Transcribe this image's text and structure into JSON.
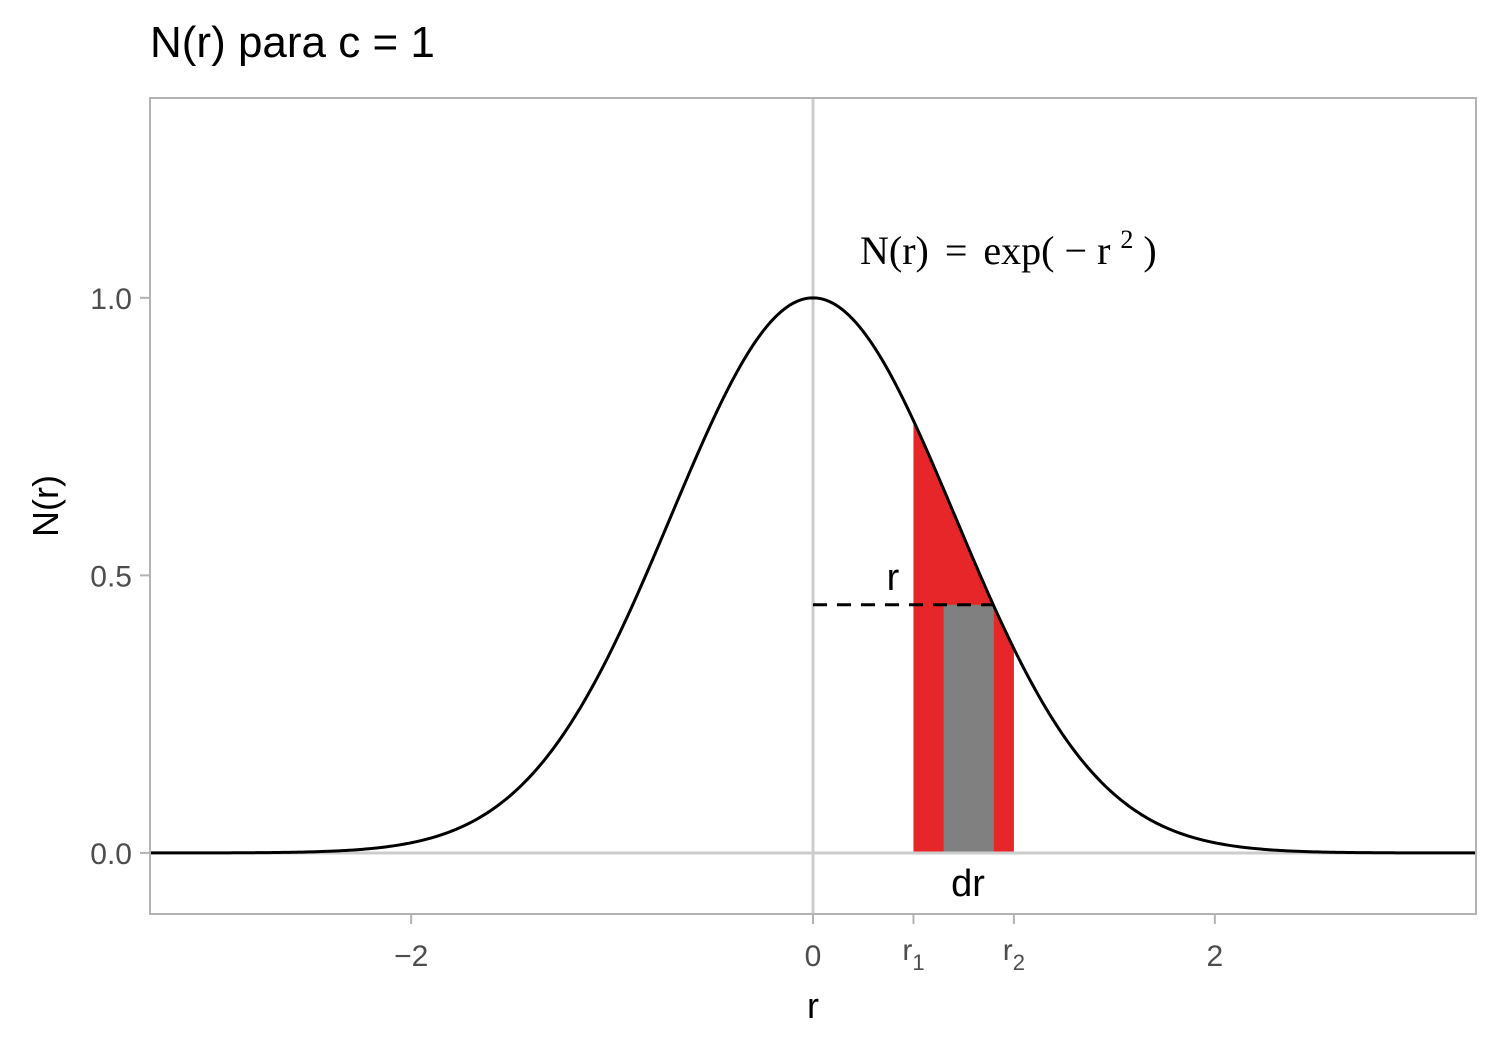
{
  "chart_data": {
    "type": "line",
    "title": "N(r) para c = 1",
    "xlabel": "r",
    "ylabel": "N(r)",
    "xlim": [
      -3.3,
      3.3
    ],
    "ylim": [
      -0.11,
      1.36
    ],
    "x_ticks": [
      {
        "value": -2,
        "label": "−2"
      },
      {
        "value": 0,
        "label": "0"
      },
      {
        "value": 2,
        "label": "2"
      }
    ],
    "x_special_ticks": [
      {
        "value": 0.5,
        "base": "r",
        "sub": "1"
      },
      {
        "value": 1.0,
        "base": "r",
        "sub": "2"
      }
    ],
    "y_ticks": [
      {
        "value": 0.0,
        "label": "0.0"
      },
      {
        "value": 0.5,
        "label": "0.5"
      },
      {
        "value": 1.0,
        "label": "1.0"
      }
    ],
    "grid": false,
    "series": [
      {
        "function": "exp(-r^2)",
        "x_from": -3.3,
        "x_to": 3.3,
        "color": "#000000"
      }
    ],
    "shaded_regions": [
      {
        "x_from": 0.5,
        "x_to": 1.0,
        "color": "#e62628",
        "shape": "under-curve-with-tail"
      },
      {
        "x_from": 0.65,
        "x_to": 0.9,
        "y": 0.447,
        "color": "#808080"
      }
    ],
    "dashed_line": {
      "x_from": 0,
      "x_to": 0.9,
      "y": 0.447
    },
    "annotations": {
      "formula_lhs": "N(r)",
      "formula_eq": "=",
      "formula_exp": "exp(",
      "formula_minus": "−",
      "formula_r": "r",
      "formula_pow": "2",
      "formula_close": ")",
      "r_label": "r",
      "dr_label": "dr"
    },
    "colors": {
      "red": "#e62628",
      "gray": "#808080",
      "axis": "#cccccc",
      "panel_border": "#b3b3b3"
    }
  }
}
